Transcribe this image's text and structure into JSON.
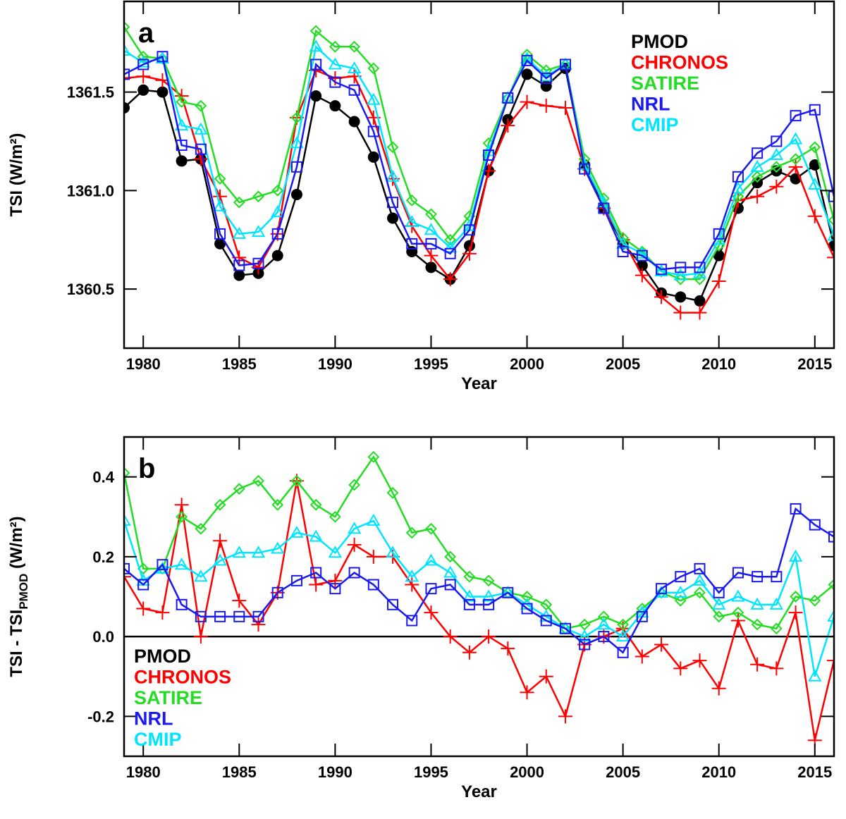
{
  "chart_data": [
    {
      "type": "line",
      "panel_label": "a",
      "xlabel": "Year",
      "ylabel": "TSI (W/m²)",
      "legend": "upper right",
      "xlim": [
        1979,
        2016
      ],
      "xticks": [
        1980,
        1985,
        1990,
        1995,
        2000,
        2005,
        2010,
        2015
      ],
      "ylim": [
        1360.2,
        1361.96
      ],
      "yticks": [
        {
          "value": 1360.5,
          "label": "1360.5"
        },
        {
          "value": 1361,
          "label": "1361.0"
        },
        {
          "value": 1361.5,
          "label": "1361.5"
        }
      ],
      "x": [
        1979,
        1980,
        1981,
        1982,
        1983,
        1984,
        1985,
        1986,
        1987,
        1988,
        1989,
        1990,
        1991,
        1992,
        1993,
        1994,
        1995,
        1996,
        1997,
        1998,
        1999,
        2000,
        2001,
        2002,
        2003,
        2004,
        2005,
        2006,
        2007,
        2008,
        2009,
        2010,
        2011,
        2012,
        2013,
        2014,
        2015,
        2016
      ],
      "series": [
        {
          "name": "PMOD",
          "color": "#000000",
          "marker": "circle",
          "values": [
            1361.42,
            1361.51,
            1361.5,
            1361.15,
            1361.16,
            1360.73,
            1360.57,
            1360.58,
            1360.67,
            1360.98,
            1361.48,
            1361.43,
            1361.35,
            1361.17,
            1360.86,
            1360.69,
            1360.61,
            1360.55,
            1360.72,
            1361.1,
            1361.36,
            1361.59,
            1361.53,
            1361.62,
            1361.13,
            1360.91,
            1360.73,
            1360.62,
            1360.48,
            1360.46,
            1360.44,
            1360.67,
            1360.91,
            1361.04,
            1361.1,
            1361.06,
            1361.13,
            1360.72
          ]
        },
        {
          "name": "CHRONOS",
          "color": "#ff0000",
          "marker": "plus",
          "values": [
            1361.57,
            1361.58,
            1361.56,
            1361.48,
            1361.16,
            1360.97,
            1360.66,
            1360.61,
            1360.78,
            1361.37,
            1361.61,
            1361.57,
            1361.58,
            1361.37,
            1361.06,
            1360.82,
            1360.67,
            1360.55,
            1360.68,
            1361.1,
            1361.33,
            1361.45,
            1361.43,
            1361.42,
            1361.11,
            1360.91,
            1360.75,
            1360.57,
            1360.46,
            1360.38,
            1360.38,
            1360.54,
            1360.95,
            1360.97,
            1361.02,
            1361.12,
            1360.87,
            1360.66
          ]
        },
        {
          "name": "SATIRE",
          "color": "#22dd22",
          "marker": "diamond",
          "values": [
            1361.83,
            1361.68,
            1361.67,
            1361.45,
            1361.43,
            1361.06,
            1360.94,
            1360.97,
            1361.0,
            1361.37,
            1361.81,
            1361.73,
            1361.73,
            1361.62,
            1361.22,
            1360.95,
            1360.88,
            1360.75,
            1360.87,
            1361.24,
            1361.47,
            1361.69,
            1361.61,
            1361.64,
            1361.16,
            1360.96,
            1360.76,
            1360.69,
            1360.59,
            1360.55,
            1360.55,
            1360.72,
            1360.97,
            1361.07,
            1361.12,
            1361.16,
            1361.22,
            1360.85
          ]
        },
        {
          "name": "NRL",
          "color": "#1a1aee",
          "marker": "square",
          "values": [
            1361.59,
            1361.64,
            1361.68,
            1361.23,
            1361.21,
            1360.78,
            1360.62,
            1360.63,
            1360.78,
            1361.12,
            1361.64,
            1361.55,
            1361.51,
            1361.3,
            1360.94,
            1360.73,
            1360.73,
            1360.68,
            1360.8,
            1361.18,
            1361.47,
            1361.66,
            1361.57,
            1361.64,
            1361.11,
            1360.91,
            1360.69,
            1360.67,
            1360.6,
            1360.61,
            1360.61,
            1360.78,
            1361.07,
            1361.19,
            1361.25,
            1361.38,
            1361.41,
            1360.97
          ]
        },
        {
          "name": "CMIP",
          "color": "#00e5ff",
          "marker": "triangle",
          "values": [
            1361.71,
            1361.65,
            1361.67,
            1361.33,
            1361.31,
            1360.92,
            1360.78,
            1360.79,
            1360.89,
            1361.24,
            1361.73,
            1361.64,
            1361.62,
            1361.46,
            1361.07,
            1360.84,
            1360.8,
            1360.71,
            1360.82,
            1361.2,
            1361.47,
            1361.67,
            1361.58,
            1361.64,
            1361.13,
            1360.94,
            1360.73,
            1360.68,
            1360.59,
            1360.57,
            1360.58,
            1360.75,
            1361.01,
            1361.12,
            1361.18,
            1361.26,
            1361.03,
            1360.77
          ]
        }
      ]
    },
    {
      "type": "line",
      "panel_label": "b",
      "xlabel": "Year",
      "ylabel": [
        "TSI - TSI",
        "PMOD",
        " (W/m²)"
      ],
      "legend": "lower left",
      "xlim": [
        1979,
        2016
      ],
      "xticks": [
        1980,
        1985,
        1990,
        1995,
        2000,
        2005,
        2010,
        2015
      ],
      "ylim": [
        -0.3,
        0.5
      ],
      "yticks": [
        -0.2,
        {
          "value": 0,
          "label": "0.0"
        },
        0.2,
        0.4
      ],
      "x": [
        1979,
        1980,
        1981,
        1982,
        1983,
        1984,
        1985,
        1986,
        1987,
        1988,
        1989,
        1990,
        1991,
        1992,
        1993,
        1994,
        1995,
        1996,
        1997,
        1998,
        1999,
        2000,
        2001,
        2002,
        2003,
        2004,
        2005,
        2006,
        2007,
        2008,
        2009,
        2010,
        2011,
        2012,
        2013,
        2014,
        2015,
        2016
      ],
      "series": [
        {
          "name": "PMOD",
          "color": "#000000",
          "marker": "none",
          "values": [
            0,
            0,
            0,
            0,
            0,
            0,
            0,
            0,
            0,
            0,
            0,
            0,
            0,
            0,
            0,
            0,
            0,
            0,
            0,
            0,
            0,
            0,
            0,
            0,
            0,
            0,
            0,
            0,
            0,
            0,
            0,
            0,
            0,
            0,
            0,
            0,
            0,
            0
          ]
        },
        {
          "name": "CHRONOS",
          "color": "#ff0000",
          "marker": "plus",
          "values": [
            0.15,
            0.07,
            0.06,
            0.33,
            0.0,
            0.24,
            0.09,
            0.03,
            0.11,
            0.39,
            0.13,
            0.14,
            0.23,
            0.2,
            0.2,
            0.13,
            0.06,
            0.0,
            -0.04,
            0.0,
            -0.03,
            -0.14,
            -0.1,
            -0.2,
            -0.02,
            0.0,
            0.02,
            -0.05,
            -0.02,
            -0.08,
            -0.06,
            -0.13,
            0.04,
            -0.07,
            -0.08,
            0.06,
            -0.26,
            -0.06
          ]
        },
        {
          "name": "SATIRE",
          "color": "#22dd22",
          "marker": "diamond",
          "values": [
            0.41,
            0.17,
            0.17,
            0.3,
            0.27,
            0.33,
            0.37,
            0.39,
            0.33,
            0.39,
            0.33,
            0.3,
            0.38,
            0.45,
            0.36,
            0.26,
            0.27,
            0.2,
            0.15,
            0.14,
            0.11,
            0.1,
            0.08,
            0.02,
            0.03,
            0.05,
            0.03,
            0.07,
            0.11,
            0.09,
            0.11,
            0.05,
            0.06,
            0.03,
            0.02,
            0.1,
            0.09,
            0.13
          ]
        },
        {
          "name": "NRL",
          "color": "#1a1aee",
          "marker": "square",
          "values": [
            0.17,
            0.13,
            0.18,
            0.08,
            0.05,
            0.05,
            0.05,
            0.05,
            0.11,
            0.14,
            0.16,
            0.12,
            0.16,
            0.13,
            0.08,
            0.04,
            0.12,
            0.13,
            0.08,
            0.08,
            0.11,
            0.07,
            0.04,
            0.02,
            -0.02,
            0.0,
            -0.04,
            0.05,
            0.12,
            0.15,
            0.17,
            0.11,
            0.16,
            0.15,
            0.15,
            0.32,
            0.28,
            0.25
          ]
        },
        {
          "name": "CMIP",
          "color": "#00e5ff",
          "marker": "triangle",
          "values": [
            0.29,
            0.14,
            0.17,
            0.18,
            0.15,
            0.19,
            0.21,
            0.21,
            0.22,
            0.26,
            0.25,
            0.21,
            0.27,
            0.29,
            0.21,
            0.15,
            0.19,
            0.16,
            0.1,
            0.1,
            0.11,
            0.08,
            0.05,
            0.02,
            0.0,
            0.03,
            0.0,
            0.06,
            0.11,
            0.11,
            0.14,
            0.08,
            0.1,
            0.08,
            0.08,
            0.2,
            -0.1,
            0.05
          ]
        }
      ]
    }
  ]
}
